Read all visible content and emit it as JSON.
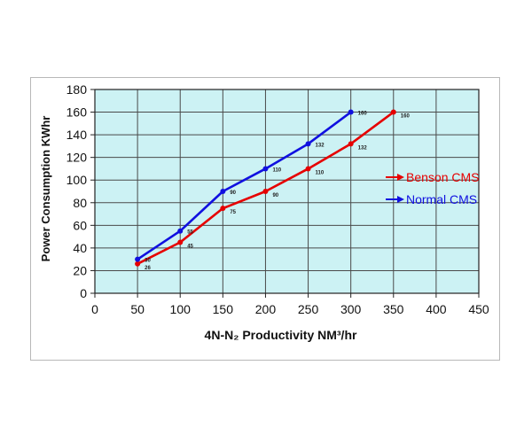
{
  "chart_data": {
    "type": "line",
    "xlabel": "4N-N₂ Productivity NM³/hr",
    "ylabel": "Power Consumption KWhr",
    "xlim": [
      0,
      450
    ],
    "ylim": [
      0,
      180
    ],
    "xticks": [
      "0",
      "50",
      "100",
      "150",
      "200",
      "250",
      "300",
      "350",
      "400",
      "450"
    ],
    "yticks": [
      "0",
      "20",
      "40",
      "60",
      "80",
      "100",
      "120",
      "140",
      "160",
      "180"
    ],
    "grid": true,
    "plot_background": "#ccf2f4",
    "legend_position": "right",
    "series": [
      {
        "name": "Benson CMS",
        "color": "#e60000",
        "x": [
          50,
          100,
          150,
          200,
          250,
          300,
          350
        ],
        "y": [
          26,
          45,
          75,
          90,
          110,
          132,
          160
        ],
        "labels": [
          "26",
          "45",
          "75",
          "90",
          "110",
          "132",
          "160"
        ]
      },
      {
        "name": "Normal CMS",
        "color": "#1010e0",
        "x": [
          50,
          100,
          150,
          200,
          250,
          300
        ],
        "y": [
          30,
          55,
          90,
          110,
          132,
          160
        ],
        "labels": [
          "30",
          "55",
          "90",
          "110",
          "132",
          "160"
        ]
      }
    ]
  }
}
